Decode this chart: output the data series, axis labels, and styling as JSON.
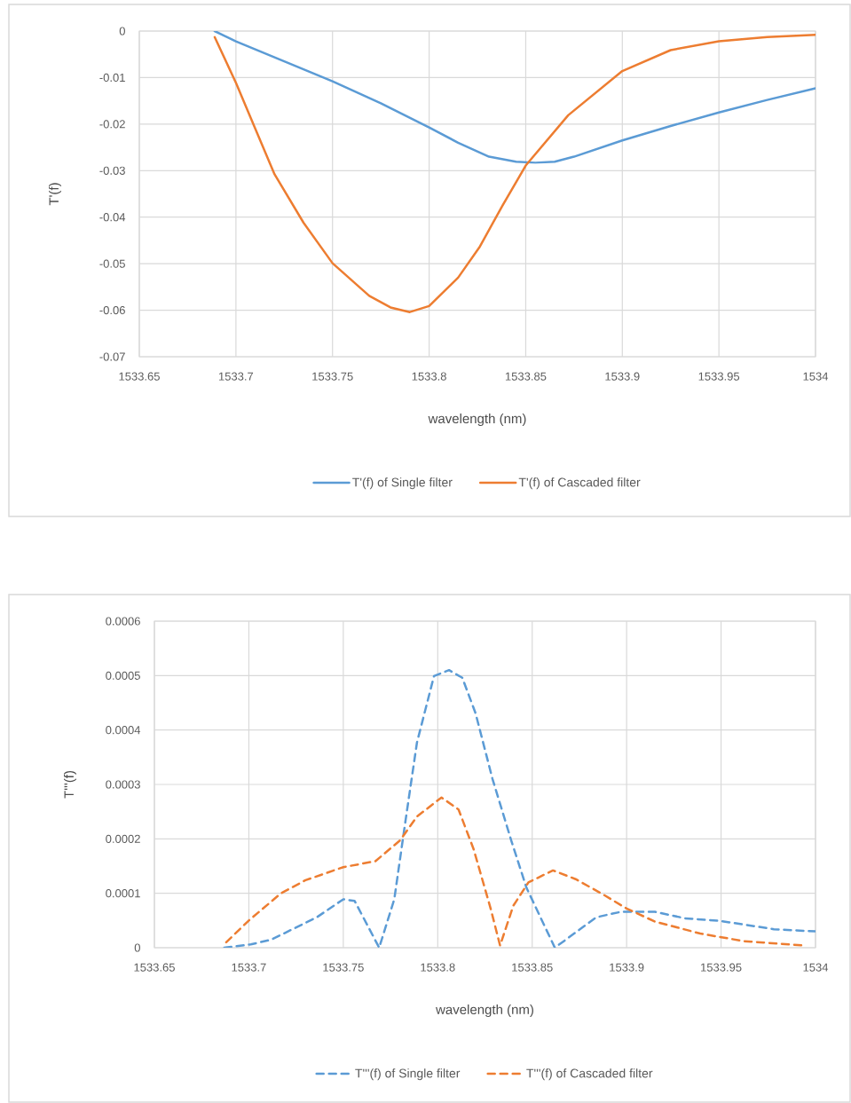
{
  "chart_data": [
    {
      "type": "line",
      "xlabel": "wavelength (nm)",
      "ylabel": "T'(f)",
      "xlim": [
        1533.65,
        1534
      ],
      "xticks": [
        1533.65,
        1533.7,
        1533.75,
        1533.8,
        1533.85,
        1533.9,
        1533.95,
        1534
      ],
      "ylim": [
        -0.07,
        0
      ],
      "yticks": [
        -0.07,
        -0.06,
        -0.05,
        -0.04,
        -0.03,
        -0.02,
        -0.01,
        0
      ],
      "grid": true,
      "legend": "bottom",
      "series": [
        {
          "name": "T'(f) of Single filter",
          "color": "#5b9bd5",
          "line_style": "solid",
          "x": [
            1533.689,
            1533.7,
            1533.725,
            1533.75,
            1533.775,
            1533.8,
            1533.815,
            1533.831,
            1533.845,
            1533.855,
            1533.865,
            1533.875,
            1533.9,
            1533.925,
            1533.95,
            1533.975,
            1534
          ],
          "values": [
            0,
            -0.0022,
            -0.0065,
            -0.0108,
            -0.0155,
            -0.0207,
            -0.024,
            -0.027,
            -0.0281,
            -0.0283,
            -0.0281,
            -0.027,
            -0.0235,
            -0.0204,
            -0.0175,
            -0.0148,
            -0.0123
          ]
        },
        {
          "name": "T'(f) of Cascaded filter",
          "color": "#ed7d31",
          "line_style": "solid",
          "x": [
            1533.689,
            1533.7,
            1533.71,
            1533.72,
            1533.735,
            1533.75,
            1533.769,
            1533.78,
            1533.79,
            1533.8,
            1533.815,
            1533.826,
            1533.838,
            1533.85,
            1533.872,
            1533.9,
            1533.925,
            1533.95,
            1533.975,
            1534
          ],
          "values": [
            -0.0013,
            -0.0111,
            -0.021,
            -0.0308,
            -0.0412,
            -0.0499,
            -0.0569,
            -0.0594,
            -0.0604,
            -0.0591,
            -0.053,
            -0.0465,
            -0.0375,
            -0.0289,
            -0.0181,
            -0.0086,
            -0.0041,
            -0.0022,
            -0.0013,
            -0.0008
          ]
        }
      ]
    },
    {
      "type": "line",
      "xlabel": "wavelength (nm)",
      "ylabel": "T'''(f)",
      "xlim": [
        1533.65,
        1534
      ],
      "xticks": [
        1533.65,
        1533.7,
        1533.75,
        1533.8,
        1533.85,
        1533.9,
        1533.95,
        1534
      ],
      "ylim": [
        0,
        0.0006
      ],
      "yticks": [
        0,
        0.0001,
        0.0002,
        0.0003,
        0.0004,
        0.0005,
        0.0006
      ],
      "grid": true,
      "legend": "bottom",
      "series": [
        {
          "name": "T'''(f) of Single filter",
          "color": "#5b9bd5",
          "line_style": "dashed",
          "x": [
            1533.687,
            1533.701,
            1533.712,
            1533.736,
            1533.75,
            1533.756,
            1533.769,
            1533.777,
            1533.783,
            1533.789,
            1533.798,
            1533.806,
            1533.813,
            1533.82,
            1533.829,
            1533.839,
            1533.847,
            1533.862,
            1533.884,
            1533.897,
            1533.915,
            1533.931,
            1533.95,
            1533.978,
            1534
          ],
          "values": [
            0,
            6e-06,
            1.5e-05,
            5.6e-05,
            8.9e-05,
            8.6e-05,
            0,
            8.9e-05,
            0.000235,
            0.000377,
            0.000499,
            0.00051,
            0.000496,
            0.000431,
            0.00031,
            0.000196,
            0.00011,
            0,
            5.6e-05,
            6.6e-05,
            6.6e-05,
            5.4e-05,
            4.9e-05,
            3.4e-05,
            3e-05
          ]
        },
        {
          "name": "T'''(f) of Cascaded filter",
          "color": "#ed7d31",
          "line_style": "dashed",
          "x": [
            1533.688,
            1533.7,
            1533.717,
            1533.73,
            1533.75,
            1533.767,
            1533.78,
            1533.789,
            1533.802,
            1533.811,
            1533.819,
            1533.828,
            1533.833,
            1533.84,
            1533.848,
            1533.861,
            1533.873,
            1533.887,
            1533.9,
            1533.915,
            1533.939,
            1533.962,
            1533.994
          ],
          "values": [
            1e-05,
            5e-05,
            0.0001,
            0.000124,
            0.000148,
            0.000159,
            0.000197,
            0.000241,
            0.000276,
            0.000254,
            0.000181,
            7.2e-05,
            4e-06,
            7.7e-05,
            0.00012,
            0.000142,
            0.000126,
            9.9e-05,
            7.2e-05,
            4.8e-05,
            2.6e-05,
            1.2e-05,
            4e-06
          ]
        }
      ]
    }
  ]
}
